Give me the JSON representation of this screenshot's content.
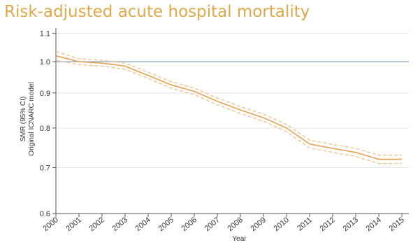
{
  "slide": {
    "title": "Risk-adjusted acute hospital mortality",
    "title_color": "#e0a84a"
  },
  "chart_data": {
    "type": "line",
    "title": "",
    "xlabel": "Year",
    "ylabel": "SMR (95% CI)",
    "ylabel2": "Original ICNARC model",
    "x": [
      2000,
      2001,
      2002,
      2003,
      2004,
      2005,
      2006,
      2007,
      2008,
      2009,
      2010,
      2011,
      2012,
      2013,
      2014,
      2015
    ],
    "xlim": [
      2000,
      2015.3
    ],
    "ylim": [
      0.6,
      1.12
    ],
    "y_scale": "log",
    "yticks": [
      0.6,
      0.7,
      0.8,
      0.9,
      1.0,
      1.1
    ],
    "ytick_labels": [
      "0.6",
      "0.7",
      "0.8",
      "0.9",
      "1.0",
      "1.1"
    ],
    "reference_line": 1.0,
    "grid": "horizontal",
    "series": [
      {
        "role": "estimate",
        "values": [
          1.02,
          1.0,
          0.995,
          0.985,
          0.955,
          0.925,
          0.905,
          0.875,
          0.85,
          0.828,
          0.8,
          0.758,
          0.747,
          0.737,
          0.72,
          0.72
        ],
        "color": "#e8a050",
        "style": "solid"
      },
      {
        "role": "upper",
        "values": [
          1.035,
          1.01,
          1.005,
          0.995,
          0.965,
          0.935,
          0.915,
          0.885,
          0.86,
          0.838,
          0.81,
          0.768,
          0.757,
          0.747,
          0.73,
          0.73
        ],
        "color": "#f2c28a",
        "style": "dashed"
      },
      {
        "role": "lower",
        "values": [
          1.005,
          0.99,
          0.985,
          0.975,
          0.945,
          0.915,
          0.895,
          0.865,
          0.84,
          0.818,
          0.79,
          0.748,
          0.737,
          0.727,
          0.71,
          0.71
        ],
        "color": "#f2c28a",
        "style": "dashed"
      }
    ]
  }
}
